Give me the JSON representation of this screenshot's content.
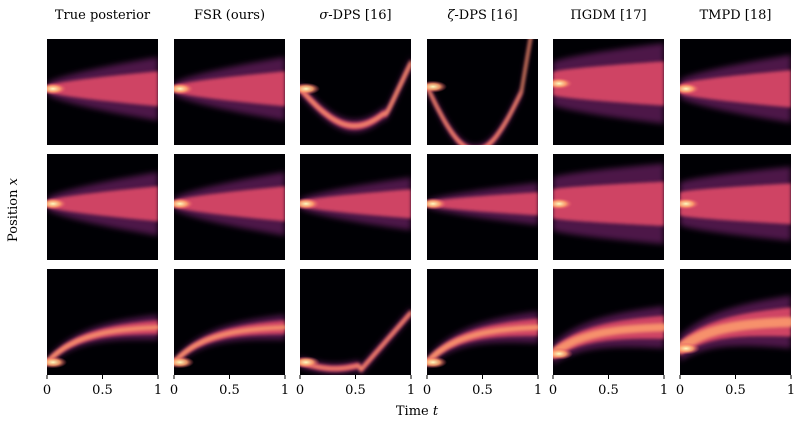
{
  "chart_data": {
    "type": "heatmap",
    "columns": [
      {
        "label": "True posterior"
      },
      {
        "label": "FSR (ours)"
      },
      {
        "prefix": "σ",
        "label": "-DPS [16]"
      },
      {
        "prefix": "ζ",
        "label": "-DPS [16]"
      },
      {
        "label": "ΠGDM [17]"
      },
      {
        "label": "TMPD [18]"
      }
    ],
    "rows": 3,
    "xlabel": "Time",
    "xlabel_var": "t",
    "ylabel": "Position",
    "ylabel_var": "x",
    "x_ticks": [
      "0",
      "0.5",
      "1"
    ],
    "xlim": [
      0,
      1
    ],
    "grid": false,
    "colormap": [
      "#000004",
      "#3b0f70",
      "#8c2981",
      "#de4968",
      "#fe9f6d",
      "#fcfdbf"
    ]
  }
}
